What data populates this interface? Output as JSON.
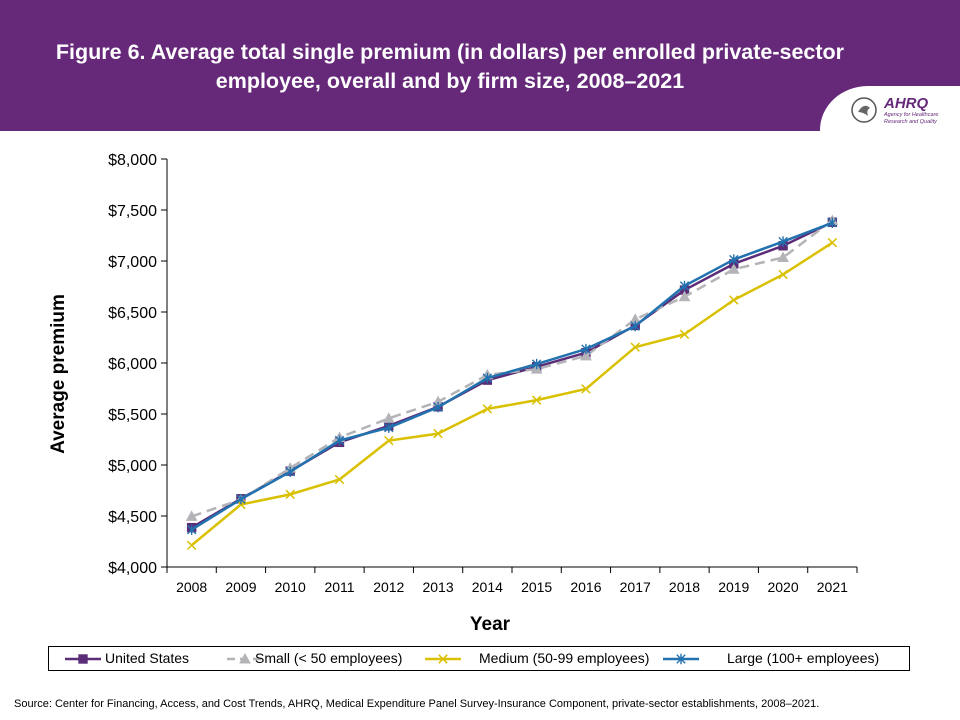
{
  "header": {
    "title": "Figure 6. Average total single premium (in dollars) per enrolled private-sector employee, overall and by firm size, 2008–2021",
    "logo_text": "AHRQ",
    "logo_subtext": "Agency for Healthcare Research and Quality",
    "background_color": "#66297a"
  },
  "chart_data": {
    "type": "line",
    "xlabel": "Year",
    "ylabel": "Average premium",
    "ylim": [
      4000,
      8000
    ],
    "yticks": [
      "$4,000",
      "$4,500",
      "$5,000",
      "$5,500",
      "$6,000",
      "$6,500",
      "$7,000",
      "$7,500",
      "$8,000"
    ],
    "grid": false,
    "legend_position": "bottom",
    "categories": [
      "2008",
      "2009",
      "2010",
      "2011",
      "2012",
      "2013",
      "2014",
      "2015",
      "2016",
      "2017",
      "2018",
      "2019",
      "2020",
      "2021"
    ],
    "series": [
      {
        "name": "United States",
        "color": "#5b2d78",
        "marker": "square",
        "dash": false,
        "values": [
          4386,
          4669,
          4940,
          5222,
          5384,
          5571,
          5832,
          5963,
          6101,
          6368,
          6715,
          6972,
          7149,
          7380
        ]
      },
      {
        "name": "Small (< 50 employees)",
        "color": "#b4b4b8",
        "marker": "triangle",
        "dash": true,
        "values": [
          4496,
          4662,
          4969,
          5270,
          5457,
          5620,
          5883,
          5940,
          6070,
          6428,
          6650,
          6919,
          7034,
          7397
        ]
      },
      {
        "name": "Medium (50-99 employees)",
        "color": "#d9c000",
        "marker": "x",
        "dash": false,
        "values": [
          4213,
          4613,
          4712,
          4858,
          5239,
          5308,
          5550,
          5636,
          5746,
          6155,
          6282,
          6618,
          6868,
          7180
        ]
      },
      {
        "name": "Large (100+ employees)",
        "color": "#2272b0",
        "marker": "star",
        "dash": false,
        "values": [
          4366,
          4665,
          4933,
          5241,
          5366,
          5567,
          5852,
          5990,
          6137,
          6362,
          6756,
          7014,
          7191,
          7375
        ]
      }
    ]
  },
  "footer": {
    "source": "Source: Center for Financing, Access, and Cost Trends, AHRQ, Medical Expenditure Panel Survey-Insurance Component, private-sector establishments, 2008–2021."
  }
}
